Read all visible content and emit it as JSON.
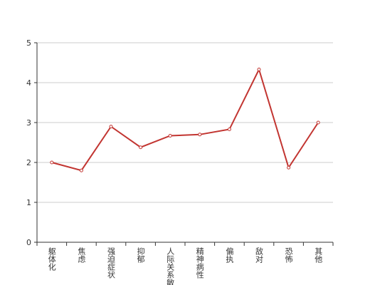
{
  "chart_data": {
    "type": "line",
    "categories": [
      "躯体化",
      "焦虑",
      "强迫症状",
      "抑郁",
      "人际关系敏感",
      "精神病性",
      "偏执",
      "敌对",
      "恐怖",
      "其他"
    ],
    "values": [
      2.0,
      1.8,
      2.9,
      2.38,
      2.67,
      2.7,
      2.83,
      4.33,
      1.87,
      3.0
    ],
    "color": "#c23531",
    "ylim": [
      0,
      5
    ],
    "yticks": [
      0,
      1,
      2,
      3,
      4,
      5
    ],
    "grid": true
  }
}
